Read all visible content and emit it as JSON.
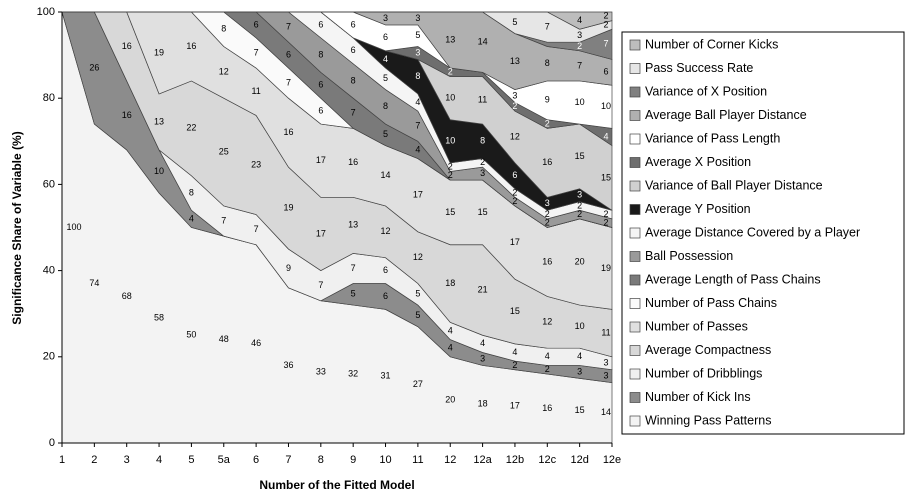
{
  "chart_data": {
    "type": "stacked-area",
    "x_label": "Number of the Fitted Model",
    "y_label": "Significance Share of Variable (%)",
    "categories": [
      "1",
      "2",
      "3",
      "4",
      "5",
      "5a",
      "6",
      "7",
      "8",
      "9",
      "10",
      "11",
      "12",
      "12a",
      "12b",
      "12c",
      "12d",
      "12e"
    ],
    "ylim": [
      0,
      100
    ],
    "yticks": [
      0,
      20,
      40,
      60,
      80,
      100
    ],
    "legend": "right",
    "series": [
      {
        "name": "Number of Corner Kicks",
        "color": "#bdbdbd",
        "values": [
          0,
          0,
          0,
          0,
          0,
          0,
          0,
          0,
          0,
          0,
          0,
          0,
          0,
          0,
          0,
          0,
          4,
          2
        ]
      },
      {
        "name": "Pass Success Rate",
        "color": "#e6e6e6",
        "values": [
          0,
          0,
          0,
          0,
          0,
          0,
          0,
          0,
          0,
          0,
          0,
          0,
          0,
          0,
          5,
          7,
          3,
          2
        ]
      },
      {
        "name": "Variance of X Position",
        "color": "#808080",
        "values": [
          0,
          0,
          0,
          0,
          0,
          0,
          0,
          0,
          0,
          0,
          0,
          0,
          0,
          0,
          0,
          1,
          2,
          7
        ]
      },
      {
        "name": "Average Ball Player Distance",
        "color": "#b0b0b0",
        "values": [
          0,
          0,
          0,
          0,
          0,
          0,
          0,
          0,
          0,
          0,
          3,
          3,
          13,
          14,
          13,
          8,
          7,
          6
        ]
      },
      {
        "name": "Variance of Pass Length",
        "color": "#ffffff",
        "values": [
          0,
          0,
          0,
          0,
          0,
          0,
          0,
          0,
          0,
          6,
          6,
          5,
          0,
          0,
          3,
          9,
          10,
          10
        ]
      },
      {
        "name": "Average X Position",
        "color": "#6e6e6e",
        "values": [
          0,
          0,
          0,
          0,
          0,
          0,
          0,
          0,
          0,
          0,
          0,
          3,
          2,
          1,
          2,
          2,
          0,
          4
        ]
      },
      {
        "name": "Variance of Ball Player Distance",
        "color": "#d0d0d0",
        "values": [
          0,
          0,
          0,
          0,
          0,
          0,
          0,
          0,
          0,
          0,
          0,
          0,
          10,
          11,
          12,
          16,
          15,
          15
        ]
      },
      {
        "name": "Average Y Position",
        "color": "#1a1a1a",
        "values": [
          0,
          0,
          0,
          0,
          0,
          0,
          0,
          0,
          0,
          0,
          4,
          8,
          10,
          8,
          6,
          3,
          3,
          0
        ]
      },
      {
        "name": "Average Distance Covered by a Player",
        "color": "#f5f5f5",
        "values": [
          0,
          0,
          0,
          0,
          0,
          0,
          0,
          0,
          6,
          6,
          5,
          4,
          2,
          2,
          2,
          2,
          2,
          2
        ]
      },
      {
        "name": "Ball Possession",
        "color": "#9a9a9a",
        "values": [
          0,
          0,
          0,
          0,
          0,
          0,
          0,
          7,
          8,
          8,
          8,
          7,
          2,
          3,
          2,
          2,
          2,
          2
        ]
      },
      {
        "name": "Average Length of Pass Chains",
        "color": "#7a7a7a",
        "values": [
          0,
          0,
          0,
          0,
          0,
          0,
          6,
          6,
          6,
          7,
          5,
          4,
          0,
          0,
          0,
          0,
          0,
          0
        ]
      },
      {
        "name": "Number of Pass Chains",
        "color": "#fafafa",
        "values": [
          0,
          0,
          0,
          0,
          0,
          8,
          7,
          7,
          6,
          0,
          0,
          0,
          0,
          0,
          0,
          0,
          0,
          0
        ]
      },
      {
        "name": "Number of Passes",
        "color": "#e0e0e0",
        "values": [
          0,
          0,
          0,
          19,
          16,
          12,
          11,
          16,
          17,
          16,
          14,
          17,
          15,
          15,
          17,
          16,
          20,
          19
        ]
      },
      {
        "name": "Average Compactness",
        "color": "#d8d8d8",
        "values": [
          0,
          0,
          16,
          13,
          22,
          25,
          23,
          19,
          17,
          13,
          12,
          12,
          18,
          21,
          15,
          12,
          10,
          11
        ]
      },
      {
        "name": "Number of Dribblings",
        "color": "#f0f0f0",
        "values": [
          0,
          0,
          0,
          0,
          8,
          7,
          7,
          9,
          7,
          7,
          6,
          5,
          4,
          4,
          4,
          4,
          4,
          3
        ]
      },
      {
        "name": "Number of Kick Ins",
        "color": "#8c8c8c",
        "values": [
          0,
          26,
          16,
          10,
          4,
          0,
          0,
          0,
          0,
          5,
          6,
          5,
          4,
          3,
          2,
          2,
          3,
          3
        ]
      },
      {
        "name": "Winning Pass Patterns",
        "color": "#f3f3f3",
        "values": [
          100,
          74,
          68,
          58,
          50,
          48,
          46,
          36,
          33,
          32,
          31,
          27,
          20,
          18,
          17,
          16,
          15,
          14
        ]
      }
    ]
  }
}
